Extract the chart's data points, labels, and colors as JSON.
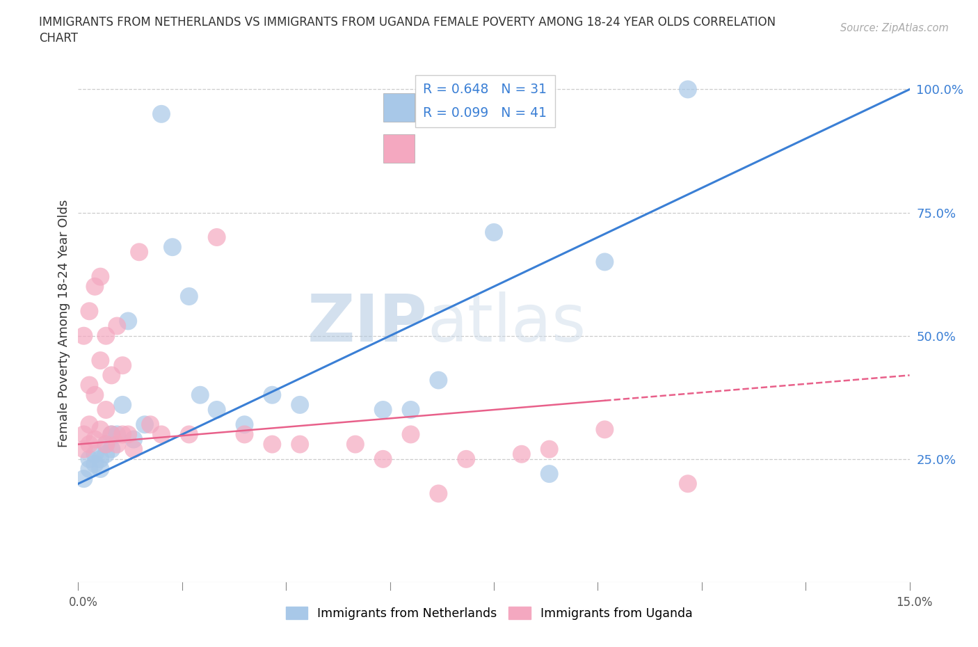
{
  "title": "IMMIGRANTS FROM NETHERLANDS VS IMMIGRANTS FROM UGANDA FEMALE POVERTY AMONG 18-24 YEAR OLDS CORRELATION\nCHART",
  "source_text": "Source: ZipAtlas.com",
  "ylabel": "Female Poverty Among 18-24 Year Olds",
  "xlim": [
    0.0,
    0.15
  ],
  "ylim": [
    0.0,
    1.05
  ],
  "netherlands_color": "#a8c8e8",
  "uganda_color": "#f4a8c0",
  "netherlands_line_color": "#3a7fd5",
  "uganda_line_color": "#e8608a",
  "R_netherlands": 0.648,
  "N_netherlands": 31,
  "R_uganda": 0.099,
  "N_uganda": 41,
  "watermark_zip": "ZIP",
  "watermark_atlas": "atlas",
  "background_color": "#ffffff",
  "nl_x": [
    0.001,
    0.002,
    0.002,
    0.003,
    0.003,
    0.004,
    0.004,
    0.005,
    0.005,
    0.006,
    0.006,
    0.007,
    0.008,
    0.009,
    0.01,
    0.012,
    0.015,
    0.017,
    0.02,
    0.022,
    0.025,
    0.03,
    0.035,
    0.04,
    0.055,
    0.06,
    0.065,
    0.075,
    0.085,
    0.095,
    0.11
  ],
  "nl_y": [
    0.21,
    0.23,
    0.25,
    0.24,
    0.26,
    0.25,
    0.23,
    0.26,
    0.28,
    0.3,
    0.27,
    0.3,
    0.36,
    0.53,
    0.29,
    0.32,
    0.95,
    0.68,
    0.58,
    0.38,
    0.35,
    0.32,
    0.38,
    0.36,
    0.35,
    0.35,
    0.41,
    0.71,
    0.22,
    0.65,
    1.0
  ],
  "ug_x": [
    0.001,
    0.001,
    0.001,
    0.002,
    0.002,
    0.002,
    0.002,
    0.003,
    0.003,
    0.003,
    0.004,
    0.004,
    0.004,
    0.005,
    0.005,
    0.005,
    0.006,
    0.006,
    0.007,
    0.007,
    0.008,
    0.008,
    0.009,
    0.01,
    0.011,
    0.013,
    0.015,
    0.02,
    0.025,
    0.03,
    0.035,
    0.04,
    0.05,
    0.055,
    0.06,
    0.065,
    0.07,
    0.08,
    0.085,
    0.095,
    0.11
  ],
  "ug_y": [
    0.27,
    0.3,
    0.5,
    0.28,
    0.32,
    0.4,
    0.55,
    0.29,
    0.38,
    0.6,
    0.31,
    0.45,
    0.62,
    0.28,
    0.35,
    0.5,
    0.3,
    0.42,
    0.28,
    0.52,
    0.3,
    0.44,
    0.3,
    0.27,
    0.67,
    0.32,
    0.3,
    0.3,
    0.7,
    0.3,
    0.28,
    0.28,
    0.28,
    0.25,
    0.3,
    0.18,
    0.25,
    0.26,
    0.27,
    0.31,
    0.2
  ]
}
